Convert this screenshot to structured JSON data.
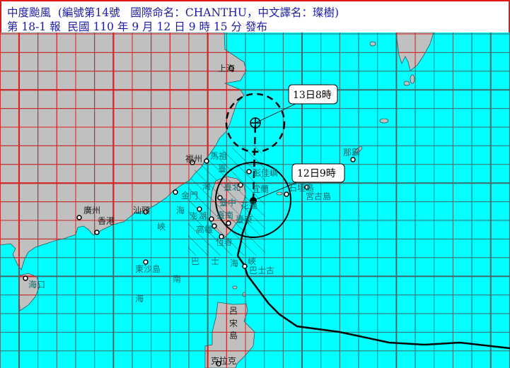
{
  "header": {
    "line1": "中度颱風  (編號第14號   國際命名：CHANTHU，中文譯名：璨樹)",
    "line2": "第 18-1 報  民國 110 年 9 月 12 日 9 時 15 分 發布"
  },
  "colors": {
    "sea": "#00ffff",
    "land": "#c0c0c0",
    "grid_sea": "#3f6b6b",
    "grid_land": "#e02020",
    "header_text": "#1c1ca8",
    "track": "#000000"
  },
  "forecast": {
    "current_label": "12日9時",
    "forecast_label": "13日8時"
  },
  "labels": {
    "shanghai": "上海",
    "fuzhou": "福州",
    "matsu": "馬祖",
    "pengjia": "彭佳嶼",
    "taipei": "臺北",
    "yilan": "宜蘭",
    "kinmen": "金門",
    "penghu": "澎湖",
    "taichung": "臺中",
    "hualien": "花蓮",
    "tainan": "臺南",
    "kaohsiung": "高雄",
    "taitung": "臺東",
    "hengchun": "恆春",
    "ishigaki": "石垣島",
    "miyako": "宮古島",
    "naha": "那霸",
    "shantou": "汕頭",
    "guangzhou": "廣州",
    "hongkong": "香港",
    "dongsha": "東沙島",
    "haikou": "海口",
    "basco": "巴士古",
    "clark": "克拉克",
    "strait_tw": [
      "臺",
      "灣",
      "海",
      "峽"
    ],
    "strait_bashi": [
      "巴",
      "士",
      "海",
      "峽"
    ],
    "south_sea": [
      "南",
      "海"
    ],
    "luzon": [
      "呂",
      "宋",
      "島"
    ]
  },
  "icons": [
    "city-marker-icon",
    "typhoon-center-icon",
    "forecast-center-icon"
  ]
}
